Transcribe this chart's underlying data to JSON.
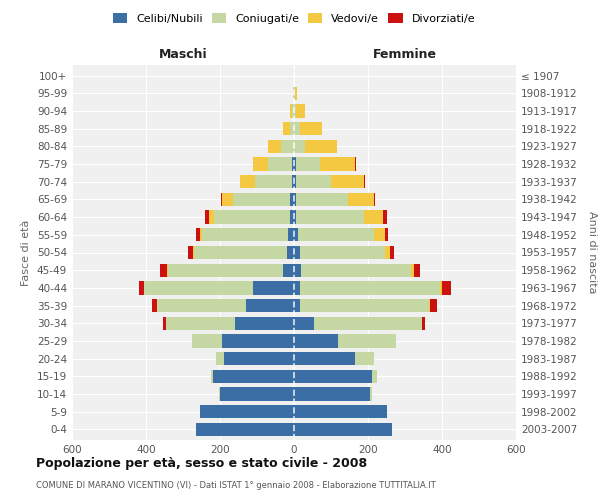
{
  "age_groups": [
    "0-4",
    "5-9",
    "10-14",
    "15-19",
    "20-24",
    "25-29",
    "30-34",
    "35-39",
    "40-44",
    "45-49",
    "50-54",
    "55-59",
    "60-64",
    "65-69",
    "70-74",
    "75-79",
    "80-84",
    "85-89",
    "90-94",
    "95-99",
    "100+"
  ],
  "birth_years": [
    "2003-2007",
    "1998-2002",
    "1993-1997",
    "1988-1992",
    "1983-1987",
    "1978-1982",
    "1973-1977",
    "1968-1972",
    "1963-1967",
    "1958-1962",
    "1953-1957",
    "1948-1952",
    "1943-1947",
    "1938-1942",
    "1933-1937",
    "1928-1932",
    "1923-1927",
    "1918-1922",
    "1913-1917",
    "1908-1912",
    "≤ 1907"
  ],
  "maschi": {
    "celibi": [
      265,
      255,
      200,
      220,
      190,
      195,
      160,
      130,
      110,
      30,
      20,
      15,
      10,
      10,
      5,
      5,
      0,
      0,
      0,
      0,
      0
    ],
    "coniugati": [
      0,
      0,
      2,
      5,
      20,
      80,
      185,
      240,
      295,
      310,
      250,
      235,
      205,
      155,
      100,
      65,
      35,
      10,
      5,
      2,
      0
    ],
    "vedovi": [
      0,
      0,
      0,
      0,
      0,
      0,
      0,
      0,
      0,
      2,
      2,
      5,
      15,
      30,
      40,
      40,
      35,
      20,
      5,
      2,
      0
    ],
    "divorziati": [
      0,
      0,
      0,
      0,
      0,
      2,
      10,
      15,
      15,
      20,
      15,
      10,
      10,
      2,
      2,
      2,
      0,
      0,
      0,
      0,
      0
    ]
  },
  "femmine": {
    "nubili": [
      265,
      250,
      205,
      210,
      165,
      120,
      55,
      15,
      15,
      20,
      15,
      10,
      5,
      5,
      5,
      5,
      0,
      0,
      0,
      0,
      0
    ],
    "coniugate": [
      0,
      2,
      5,
      15,
      50,
      155,
      290,
      350,
      380,
      295,
      230,
      205,
      185,
      140,
      95,
      65,
      30,
      15,
      5,
      2,
      0
    ],
    "vedove": [
      0,
      0,
      0,
      0,
      0,
      0,
      0,
      2,
      5,
      10,
      15,
      30,
      50,
      70,
      90,
      95,
      85,
      60,
      25,
      5,
      0
    ],
    "divorziate": [
      0,
      0,
      0,
      0,
      0,
      2,
      10,
      20,
      25,
      15,
      10,
      10,
      10,
      5,
      2,
      2,
      2,
      0,
      0,
      0,
      0
    ]
  },
  "color_celibi": "#3a6ea5",
  "color_coniugati": "#c5d8a4",
  "color_vedovi": "#f5c842",
  "color_divorziati": "#cc1111",
  "xlim": 600,
  "title": "Popolazione per età, sesso e stato civile - 2008",
  "subtitle": "COMUNE DI MARANO VICENTINO (VI) - Dati ISTAT 1° gennaio 2008 - Elaborazione TUTTITALIA.IT",
  "ylabel_left": "Fasce di età",
  "ylabel_right": "Anni di nascita",
  "xlabel_maschi": "Maschi",
  "xlabel_femmine": "Femmine",
  "bg_color": "#f0f0f0",
  "legend_labels": [
    "Celibi/Nubili",
    "Coniugati/e",
    "Vedovi/e",
    "Divorziati/e"
  ]
}
